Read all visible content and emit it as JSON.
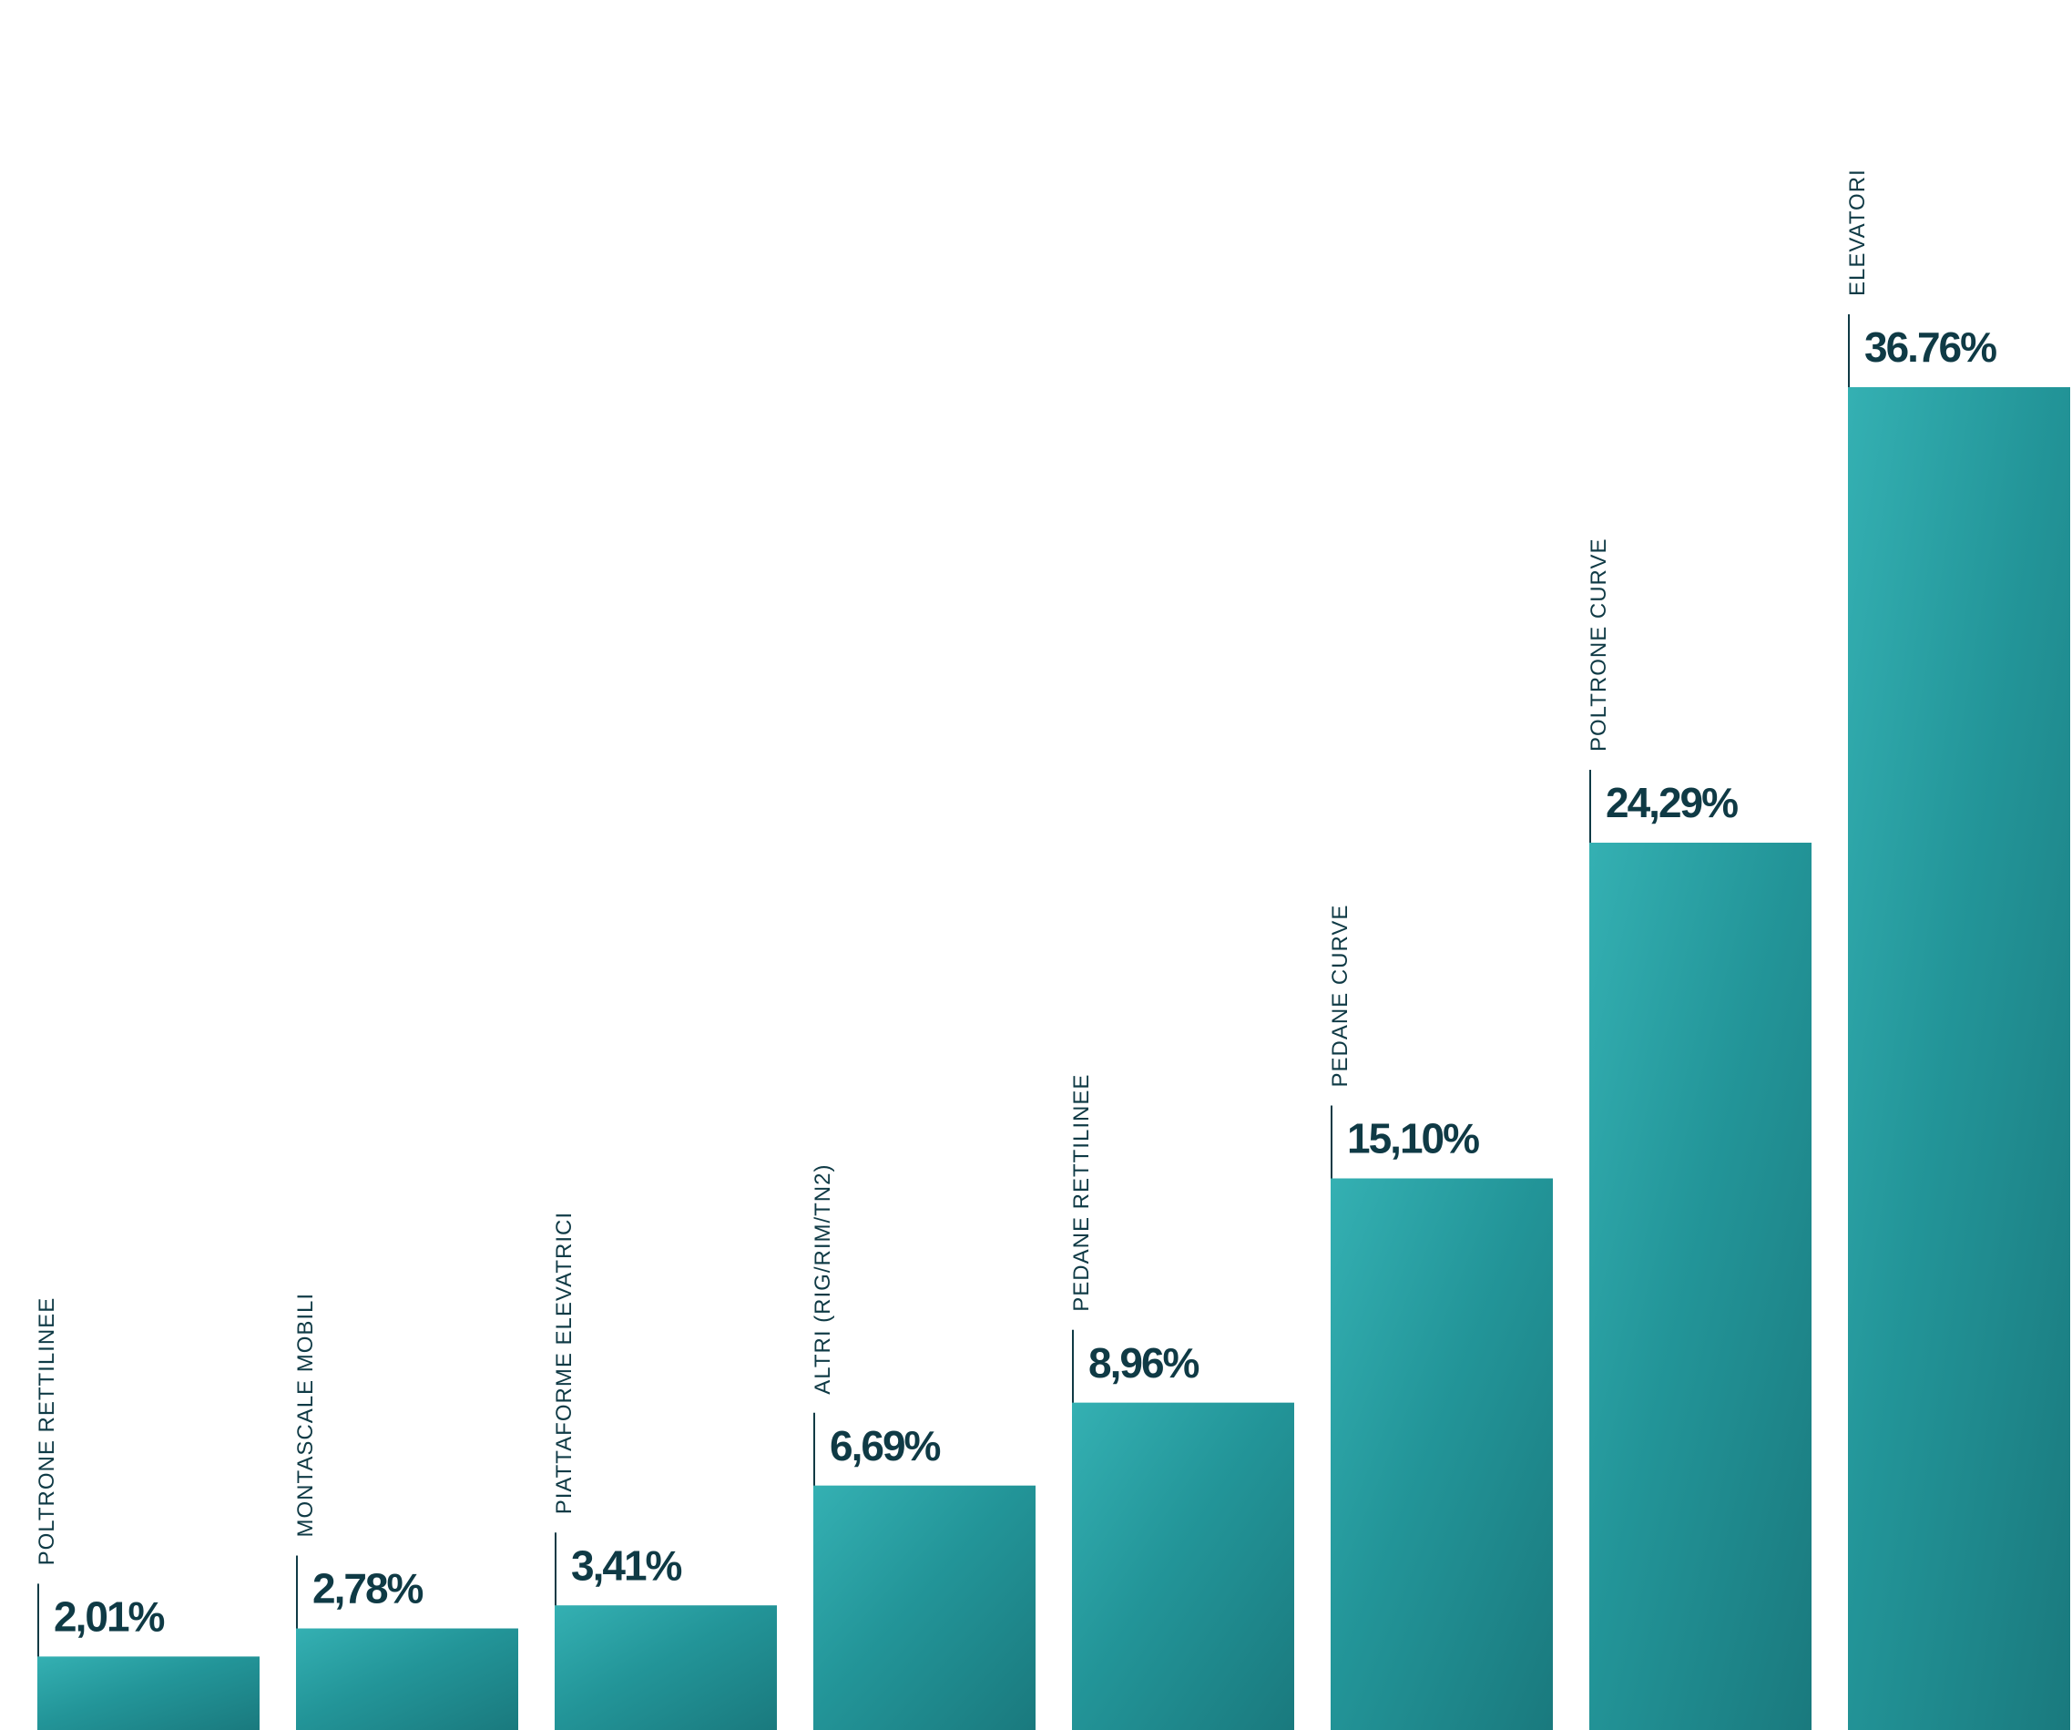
{
  "chart_data": {
    "type": "bar",
    "categories": [
      "POLTRONE RETTILINEE",
      "MONTASCALE MOBILI",
      "PIATTAFORME ELEVATRICI",
      "ALTRI (RIG/RIM/TN2)",
      "PEDANE RETTILINEE",
      "PEDANE CURVE",
      "POLTRONE CURVE",
      "ELEVATORI"
    ],
    "values": [
      2.01,
      2.78,
      3.41,
      6.69,
      8.96,
      15.1,
      24.29,
      36.76
    ],
    "value_labels": [
      "2,01%",
      "2,78%",
      "3,41%",
      "6,69%",
      "8,96%",
      "15,10%",
      "24,29%",
      "36.76%"
    ],
    "color": "#2aa3a6"
  }
}
